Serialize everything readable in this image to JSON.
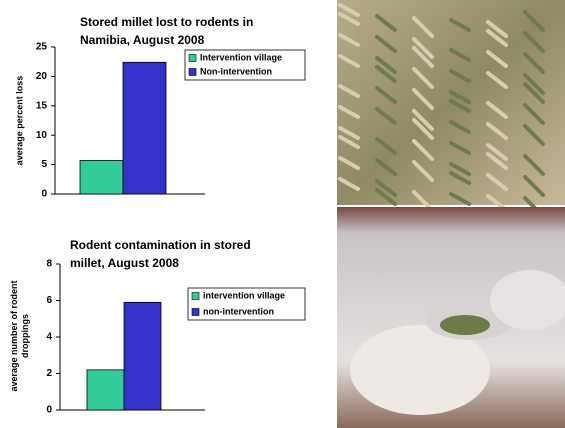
{
  "chart_data": [
    {
      "type": "bar",
      "title": "Stored millet lost to rodents in Namibia, August 2008",
      "y_label": "average percent loss",
      "categories": [
        null
      ],
      "series": [
        {
          "name": "Intervention village",
          "color": "#33cc99",
          "values": [
            5.7
          ]
        },
        {
          "name": "Non-intervention",
          "color": "#3333cc",
          "values": [
            22.4
          ]
        }
      ],
      "ylim": [
        0,
        25
      ],
      "yticks": [
        0,
        5,
        10,
        15,
        20,
        25
      ]
    },
    {
      "type": "bar",
      "title": "Rodent contamination in stored millet, August 2008",
      "y_label": "average number of rodent droppings",
      "categories": [
        null
      ],
      "series": [
        {
          "name": "intervention village",
          "color": "#33cc99",
          "values": [
            2.2
          ]
        },
        {
          "name": "non-intervention",
          "color": "#3333cc",
          "values": [
            5.9
          ]
        }
      ],
      "ylim": [
        0,
        8
      ],
      "yticks": [
        0,
        2,
        4,
        6,
        8
      ]
    }
  ]
}
